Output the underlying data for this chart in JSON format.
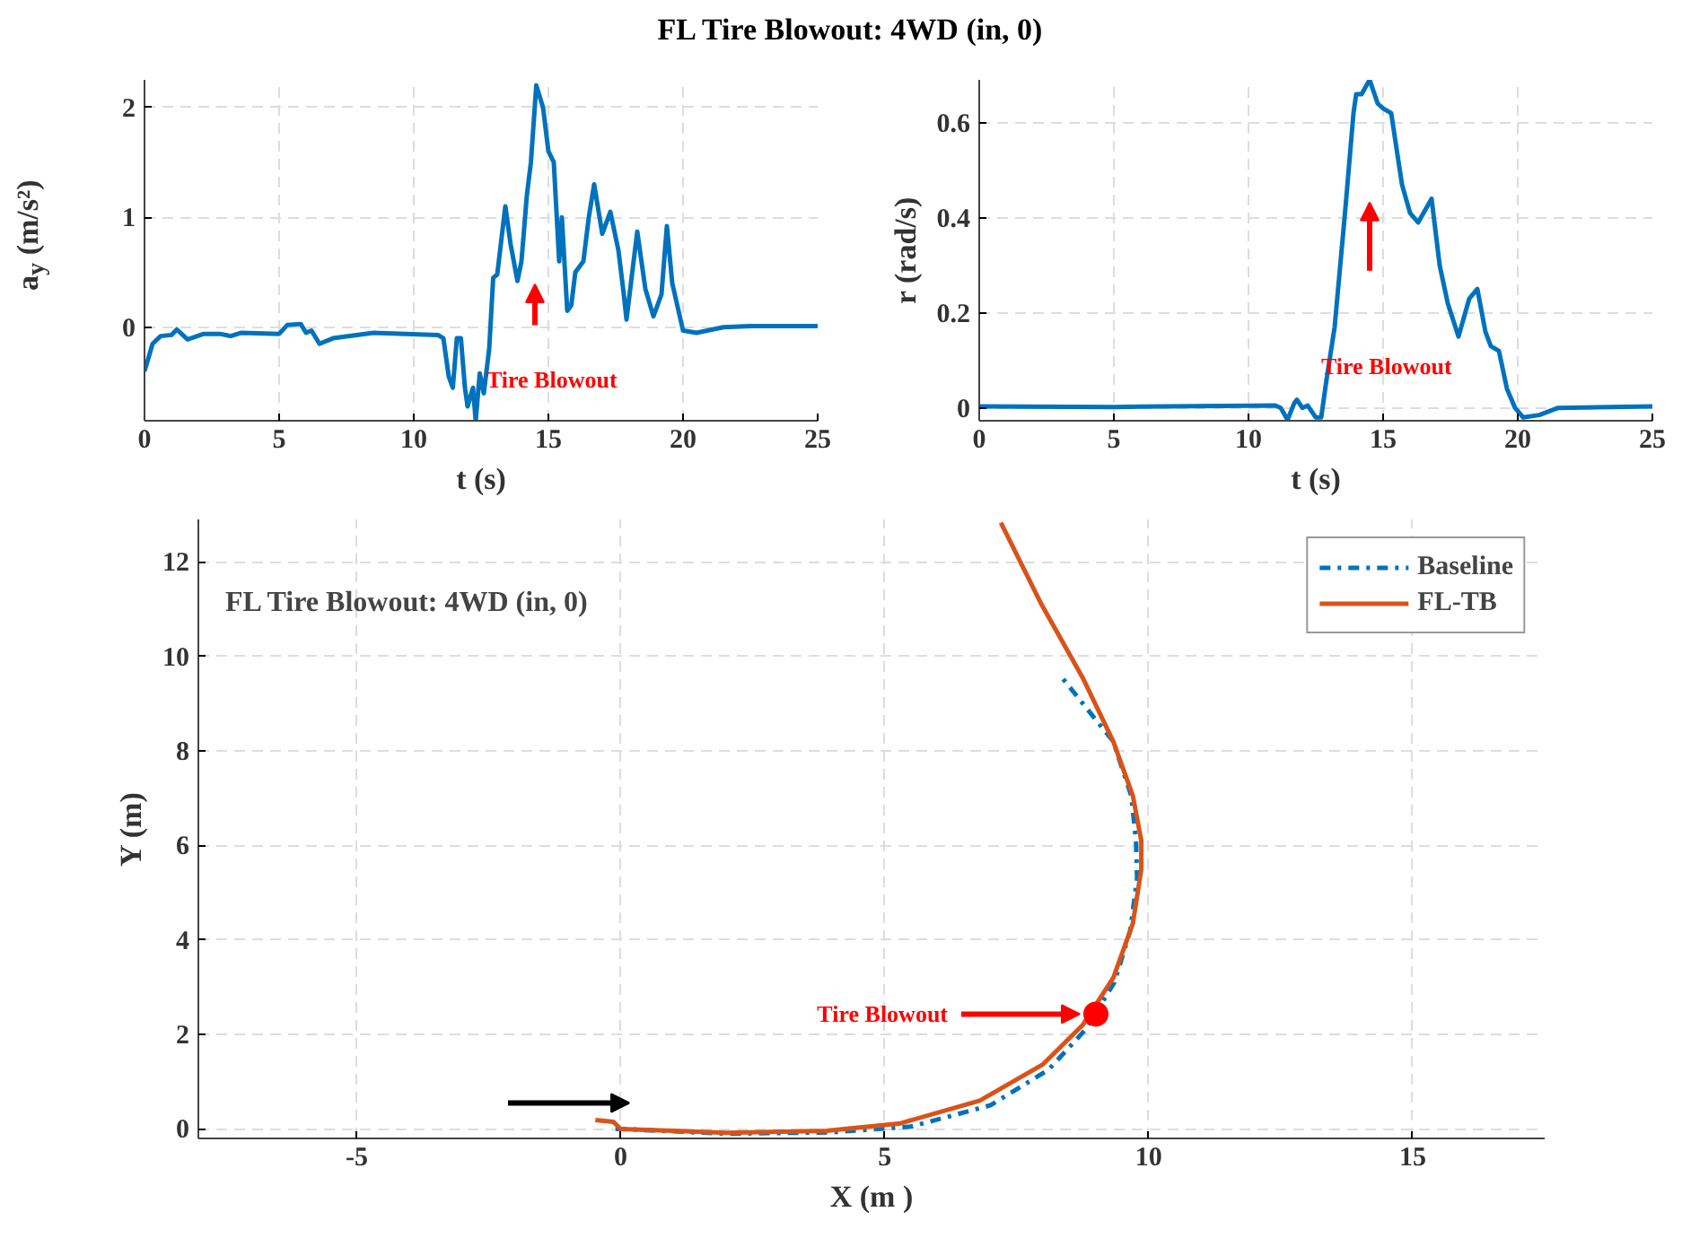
{
  "chart_data": [
    {
      "type": "line",
      "title": "FL Tire Blowout: 4WD (in, 0)",
      "xlabel": "t (s)",
      "ylabel": "a$_{y}$ (m/s²)",
      "xlim": [
        0,
        25
      ],
      "ylim": [
        -0.85,
        2.25
      ],
      "xticks": [
        0,
        5,
        10,
        15,
        20,
        25
      ],
      "yticks": [
        0,
        1,
        2
      ],
      "grid": true,
      "annotations": [
        "Tire Blowout"
      ],
      "series": [
        {
          "color": "#0072bd",
          "x": [
            0,
            0.3,
            0.6,
            1.0,
            1.2,
            1.6,
            2.2,
            2.8,
            3.2,
            3.6,
            5.0,
            5.3,
            5.8,
            6.0,
            6.2,
            6.5,
            7.0,
            8.5,
            10.9,
            11.1,
            11.3,
            11.45,
            11.6,
            11.75,
            11.9,
            12.0,
            12.2,
            12.3,
            12.45,
            12.6,
            12.8,
            12.95,
            13.1,
            13.4,
            13.6,
            13.85,
            14.0,
            14.2,
            14.35,
            14.55,
            14.8,
            15.0,
            15.2,
            15.4,
            15.5,
            15.7,
            15.85,
            16.0,
            16.3,
            16.5,
            16.7,
            17.0,
            17.3,
            17.6,
            17.8,
            17.9,
            18.3,
            18.6,
            18.9,
            19.2,
            19.4,
            19.6,
            20.0,
            20.5,
            21.5,
            22.5,
            25
          ],
          "values": [
            -0.4,
            -0.15,
            -0.08,
            -0.07,
            -0.02,
            -0.11,
            -0.06,
            -0.06,
            -0.08,
            -0.05,
            -0.06,
            0.02,
            0.03,
            -0.05,
            -0.03,
            -0.15,
            -0.1,
            -0.05,
            -0.07,
            -0.1,
            -0.45,
            -0.55,
            -0.1,
            -0.1,
            -0.55,
            -0.72,
            -0.55,
            -0.85,
            -0.42,
            -0.6,
            -0.2,
            0.45,
            0.48,
            1.1,
            0.75,
            0.42,
            0.6,
            1.2,
            1.5,
            2.2,
            2.0,
            1.6,
            1.5,
            0.6,
            1.0,
            0.15,
            0.2,
            0.5,
            0.6,
            1.0,
            1.3,
            0.85,
            1.05,
            0.7,
            0.3,
            0.07,
            0.87,
            0.35,
            0.1,
            0.3,
            0.92,
            0.4,
            -0.03,
            -0.05,
            0.0,
            0.01,
            0.01
          ]
        }
      ]
    },
    {
      "type": "line",
      "xlabel": "t (s)",
      "ylabel": "r (rad/s)",
      "xlim": [
        0,
        25
      ],
      "ylim": [
        -0.027,
        0.69
      ],
      "xticks": [
        0,
        5,
        10,
        15,
        20,
        25
      ],
      "yticks": [
        0,
        0.2,
        0.4,
        0.6
      ],
      "grid": true,
      "annotations": [
        "Tire Blowout"
      ],
      "series": [
        {
          "color": "#0072bd",
          "x": [
            0,
            5,
            11,
            11.2,
            11.45,
            11.7,
            11.8,
            12,
            12.2,
            12.5,
            12.7,
            12.9,
            13.2,
            13.6,
            13.9,
            14.0,
            14.2,
            14.5,
            14.8,
            15.0,
            15.3,
            15.7,
            16.0,
            16.3,
            16.5,
            16.8,
            17.1,
            17.4,
            17.8,
            18.2,
            18.5,
            18.8,
            19.0,
            19.3,
            19.6,
            19.9,
            20.2,
            20.8,
            21.5,
            25
          ],
          "values": [
            0.003,
            0.002,
            0.005,
            0.0,
            -0.025,
            0.01,
            0.017,
            0.0,
            0.005,
            -0.02,
            -0.02,
            0.06,
            0.17,
            0.42,
            0.62,
            0.66,
            0.66,
            0.69,
            0.64,
            0.63,
            0.62,
            0.47,
            0.41,
            0.39,
            0.41,
            0.44,
            0.3,
            0.22,
            0.15,
            0.23,
            0.25,
            0.16,
            0.13,
            0.12,
            0.04,
            0.0,
            -0.02,
            -0.015,
            0.0,
            0.003
          ]
        }
      ]
    },
    {
      "type": "line",
      "title": "FL Tire Blowout: 4WD (in, 0)",
      "xlabel": "X (m )",
      "ylabel": "Y (m)",
      "xlim": [
        -8,
        17.5
      ],
      "ylim": [
        -0.2,
        12.9
      ],
      "xticks": [
        -5,
        0,
        5,
        10,
        15
      ],
      "yticks": [
        0,
        2,
        4,
        6,
        8,
        10,
        12
      ],
      "grid": true,
      "legend": "top right",
      "annotations": [
        {
          "text": "Tire Blowout",
          "x": 9.0,
          "y": 2.43
        }
      ],
      "series": [
        {
          "name": "Baseline",
          "color": "#0072bd",
          "line_style": "dashdot",
          "x": [
            -0.1,
            0,
            2,
            4,
            5.5,
            7,
            8.1,
            8.8,
            9.35,
            9.65,
            9.78,
            9.76,
            9.67,
            9.33,
            8.36
          ],
          "values": [
            0,
            0,
            -0.1,
            -0.07,
            0.05,
            0.5,
            1.25,
            2.1,
            3.1,
            4.2,
            5.3,
            6.1,
            7.05,
            8.2,
            9.55
          ]
        },
        {
          "name": "FL-TB",
          "color": "#d95319",
          "line_style": "solid",
          "x": [
            -0.48,
            -0.14,
            0,
            2,
            3.9,
            5.3,
            6.8,
            8,
            8.75,
            9.33,
            9.7,
            9.86,
            9.86,
            9.7,
            9.33,
            8.75,
            7.97,
            7.2
          ],
          "values": [
            0.19,
            0.15,
            0,
            -0.08,
            -0.04,
            0.12,
            0.6,
            1.37,
            2.2,
            3.2,
            4.35,
            5.5,
            6.1,
            7.05,
            8.2,
            9.55,
            11.1,
            12.83
          ]
        },
        {
          "type": "scatter",
          "color": "#ff0000",
          "x": [
            9.0
          ],
          "values": [
            2.43
          ]
        }
      ]
    }
  ]
}
